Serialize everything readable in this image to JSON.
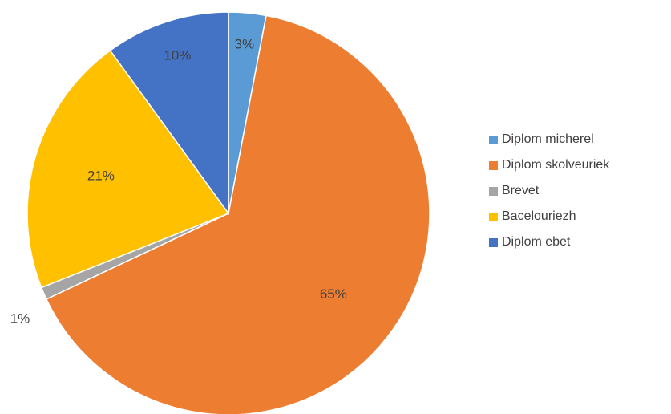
{
  "chart_data": {
    "type": "pie",
    "title": "",
    "legend_position": "right",
    "slices": [
      {
        "label": "Diplom micherel",
        "value": 3,
        "value_label": "3%",
        "color": "#5B9BD5"
      },
      {
        "label": "Diplom skolveuriek",
        "value": 65,
        "value_label": "65%",
        "color": "#ED7D31"
      },
      {
        "label": "Brevet",
        "value": 1,
        "value_label": "1%",
        "color": "#A5A5A5"
      },
      {
        "label": "Bacelouriezh",
        "value": 21,
        "value_label": "21%",
        "color": "#FFC000"
      },
      {
        "label": "Diplom ebet",
        "value": 10,
        "value_label": "10%",
        "color": "#4472C4"
      }
    ]
  }
}
